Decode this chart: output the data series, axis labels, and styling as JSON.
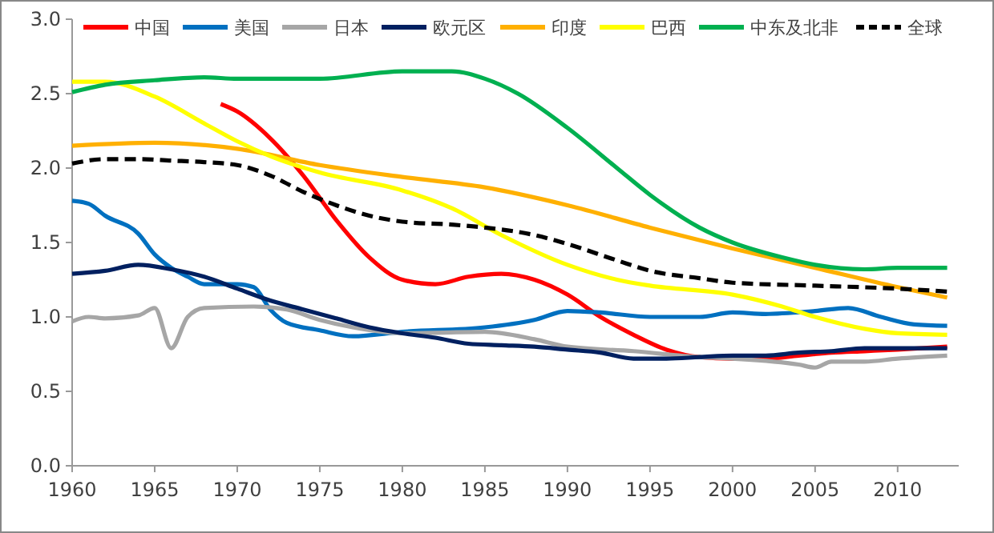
{
  "chart_data": {
    "type": "line",
    "legend": "top",
    "xlim": [
      1960,
      2013.7
    ],
    "xticks": [
      1960,
      1965,
      1970,
      1975,
      1980,
      1985,
      1990,
      1995,
      2000,
      2005,
      2010
    ],
    "ylim": [
      0,
      3
    ],
    "yticks": [
      {
        "value": 0,
        "label": "0.0"
      },
      {
        "value": 0.5,
        "label": "0.5"
      },
      {
        "value": 1,
        "label": "1.0"
      },
      {
        "value": 1.5,
        "label": "1.5"
      },
      {
        "value": 2,
        "label": "2.0"
      },
      {
        "value": 2.5,
        "label": "2.5"
      },
      {
        "value": 3,
        "label": "3.0"
      }
    ],
    "series": [
      {
        "name": "中国",
        "color": "#ff0000",
        "x": [
          1969,
          1970,
          1972,
          1974,
          1976,
          1978,
          1980,
          1982,
          1984,
          1986,
          1988,
          1990,
          1992,
          1994,
          1996,
          1998,
          2000,
          2002,
          2004,
          2006,
          2008,
          2010,
          2013
        ],
        "values": [
          2.43,
          2.38,
          2.2,
          1.95,
          1.65,
          1.4,
          1.25,
          1.22,
          1.27,
          1.29,
          1.25,
          1.15,
          1.0,
          0.88,
          0.78,
          0.73,
          0.72,
          0.72,
          0.74,
          0.76,
          0.77,
          0.78,
          0.8
        ]
      },
      {
        "name": "美国",
        "color": "#0070c0",
        "x": [
          1960,
          1961,
          1962,
          1964,
          1965,
          1966,
          1967,
          1968,
          1970,
          1971,
          1972,
          1973,
          1975,
          1977,
          1980,
          1985,
          1988,
          1990,
          1992,
          1995,
          1998,
          2000,
          2002,
          2005,
          2007,
          2009,
          2011,
          2013
        ],
        "values": [
          1.78,
          1.76,
          1.68,
          1.56,
          1.42,
          1.33,
          1.27,
          1.22,
          1.22,
          1.2,
          1.05,
          0.96,
          0.91,
          0.87,
          0.9,
          0.93,
          0.98,
          1.04,
          1.03,
          1.0,
          1.0,
          1.03,
          1.02,
          1.04,
          1.06,
          1.0,
          0.95,
          0.94
        ]
      },
      {
        "name": "日本",
        "color": "#a6a6a6",
        "x": [
          1960,
          1961,
          1962,
          1964,
          1965,
          1966,
          1967,
          1968,
          1971,
          1973,
          1975,
          1977,
          1980,
          1985,
          1988,
          1990,
          1994,
          1998,
          2000,
          2004,
          2005,
          2006,
          2008,
          2010,
          2013
        ],
        "values": [
          0.97,
          1.0,
          0.99,
          1.01,
          1.06,
          0.79,
          1.0,
          1.06,
          1.07,
          1.05,
          0.98,
          0.93,
          0.89,
          0.9,
          0.85,
          0.8,
          0.77,
          0.73,
          0.72,
          0.68,
          0.66,
          0.7,
          0.7,
          0.72,
          0.74
        ]
      },
      {
        "name": "欧元区",
        "color": "#002060",
        "x": [
          1960,
          1962,
          1964,
          1966,
          1968,
          1970,
          1972,
          1974,
          1976,
          1978,
          1980,
          1982,
          1984,
          1986,
          1988,
          1990,
          1992,
          1994,
          1996,
          1998,
          2000,
          2002,
          2004,
          2006,
          2008,
          2010,
          2013
        ],
        "values": [
          1.29,
          1.31,
          1.35,
          1.32,
          1.27,
          1.19,
          1.11,
          1.05,
          0.99,
          0.93,
          0.89,
          0.86,
          0.82,
          0.81,
          0.8,
          0.78,
          0.76,
          0.72,
          0.72,
          0.73,
          0.74,
          0.74,
          0.76,
          0.77,
          0.79,
          0.79,
          0.79
        ]
      },
      {
        "name": "印度",
        "color": "#ffb000",
        "x": [
          1960,
          1965,
          1970,
          1975,
          1980,
          1985,
          1990,
          1995,
          2000,
          2005,
          2010,
          2013
        ],
        "values": [
          2.15,
          2.17,
          2.13,
          2.02,
          1.94,
          1.87,
          1.75,
          1.6,
          1.46,
          1.33,
          1.2,
          1.13
        ]
      },
      {
        "name": "巴西",
        "color": "#ffff00",
        "x": [
          1960,
          1962,
          1965,
          1968,
          1970,
          1972,
          1975,
          1980,
          1983,
          1986,
          1990,
          1993,
          1995,
          2000,
          2003,
          2005,
          2008,
          2010,
          2013
        ],
        "values": [
          2.58,
          2.58,
          2.48,
          2.3,
          2.18,
          2.08,
          1.97,
          1.85,
          1.73,
          1.55,
          1.35,
          1.25,
          1.21,
          1.15,
          1.07,
          1.0,
          0.92,
          0.89,
          0.88
        ]
      },
      {
        "name": "中东及北非",
        "color": "#00b050",
        "x": [
          1960,
          1962,
          1965,
          1968,
          1970,
          1975,
          1980,
          1983,
          1985,
          1987,
          1990,
          1993,
          1995,
          1998,
          2000,
          2003,
          2005,
          2008,
          2010,
          2013
        ],
        "values": [
          2.51,
          2.56,
          2.59,
          2.61,
          2.6,
          2.6,
          2.65,
          2.65,
          2.6,
          2.5,
          2.27,
          2.0,
          1.82,
          1.6,
          1.5,
          1.4,
          1.35,
          1.32,
          1.33,
          1.33
        ]
      },
      {
        "name": "全球",
        "color": "#000000",
        "line_style": "dashed",
        "x": [
          1960,
          1962,
          1964,
          1966,
          1968,
          1970,
          1972,
          1974,
          1976,
          1978,
          1980,
          1983,
          1985,
          1988,
          1990,
          1993,
          1995,
          1998,
          2000,
          2005,
          2010,
          2013
        ],
        "values": [
          2.03,
          2.06,
          2.06,
          2.05,
          2.04,
          2.02,
          1.95,
          1.84,
          1.75,
          1.68,
          1.64,
          1.62,
          1.6,
          1.55,
          1.49,
          1.38,
          1.31,
          1.26,
          1.23,
          1.21,
          1.19,
          1.17
        ]
      }
    ]
  }
}
